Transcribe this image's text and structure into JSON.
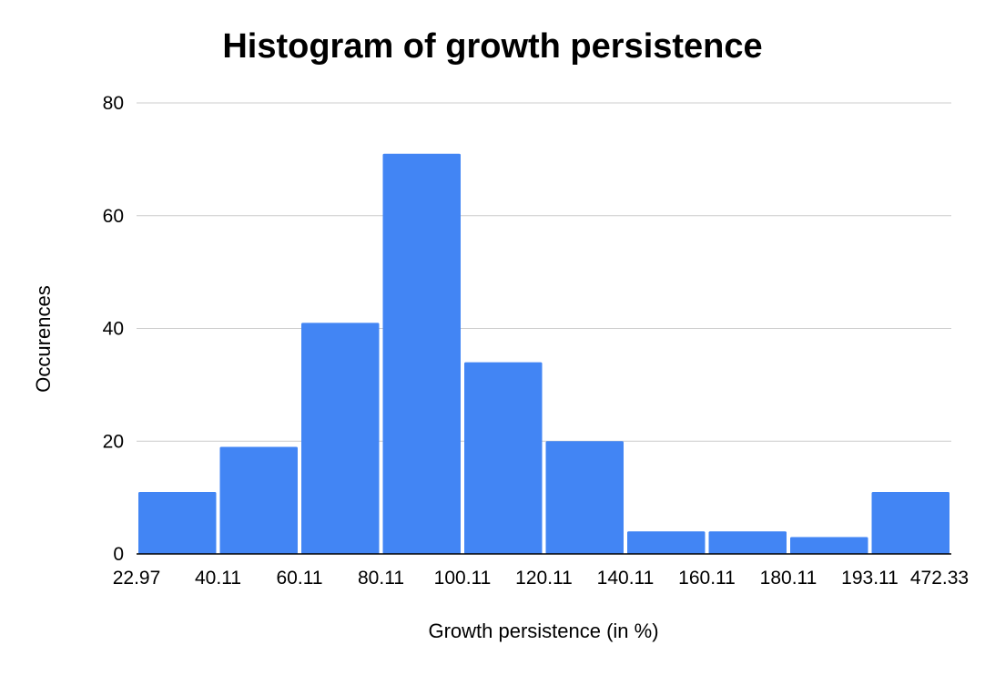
{
  "chart_data": {
    "type": "bar",
    "title": "Histogram of growth persistence",
    "xlabel": "Growth persistence (in %)",
    "ylabel": "Occurences",
    "bin_edges": [
      "22.97",
      "40.11",
      "60.11",
      "80.11",
      "100.11",
      "120.11",
      "140.11",
      "160.11",
      "180.11",
      "193.11",
      "472.33"
    ],
    "values": [
      11,
      19,
      41,
      71,
      34,
      20,
      4,
      4,
      3,
      11
    ],
    "ylim": [
      0,
      80
    ],
    "yticks": [
      0,
      20,
      40,
      60,
      80
    ],
    "grid": true,
    "legend": "none",
    "bar_color": "#4285f4",
    "grid_color": "#cccccc",
    "axis_color": "#000000"
  }
}
